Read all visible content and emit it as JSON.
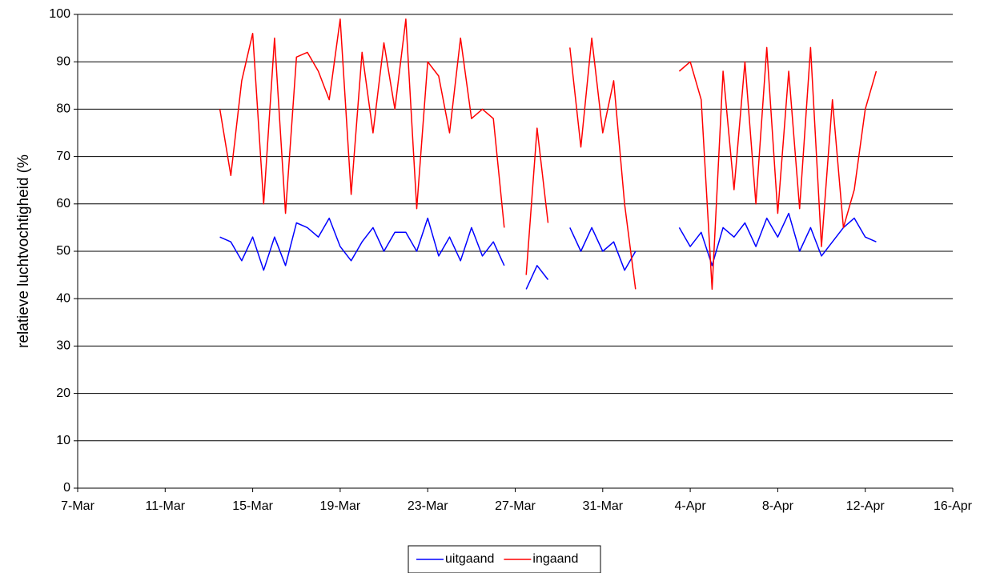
{
  "chart_data": {
    "type": "line",
    "y_label": "relatieve luchtvochtigheid (%",
    "x": [
      13.5,
      14,
      14.5,
      15,
      15.5,
      16,
      16.5,
      17,
      17.5,
      18,
      18.5,
      19,
      19.5,
      20,
      20.5,
      21,
      21.5,
      22,
      22.5,
      23,
      23.5,
      24,
      24.5,
      25,
      25.5,
      26,
      26.5,
      27,
      27.5,
      28,
      28.5,
      29,
      29.5,
      30,
      30.5,
      31,
      31.5,
      32,
      32.5,
      33,
      33.5,
      34,
      34.5,
      35,
      35.5,
      36,
      36.5,
      37,
      37.5,
      38,
      38.5,
      39,
      39.5,
      40,
      40.5,
      41,
      41.5,
      42,
      42.5,
      43,
      43.5
    ],
    "series": [
      {
        "name": "uitgaand",
        "color": "#0000ff",
        "values": [
          53,
          52,
          48,
          53,
          46,
          53,
          47,
          56,
          55,
          53,
          57,
          51,
          48,
          52,
          55,
          50,
          54,
          54,
          50,
          57,
          49,
          53,
          48,
          55,
          49,
          52,
          47,
          null,
          42,
          47,
          44,
          null,
          55,
          50,
          55,
          50,
          52,
          46,
          50,
          null,
          null,
          null,
          55,
          51,
          54,
          47,
          55,
          53,
          56,
          51,
          57,
          53,
          58,
          50,
          55,
          49,
          52,
          55,
          57,
          53,
          52
        ]
      },
      {
        "name": "ingaand",
        "color": "#ff0000",
        "values": [
          80,
          66,
          86,
          96,
          60,
          95,
          58,
          91,
          92,
          88,
          82,
          99,
          62,
          92,
          75,
          94,
          80,
          99,
          59,
          90,
          87,
          75,
          95,
          78,
          80,
          78,
          55,
          null,
          45,
          76,
          56,
          null,
          93,
          72,
          95,
          75,
          86,
          60,
          42,
          null,
          null,
          null,
          88,
          90,
          82,
          42,
          88,
          63,
          90,
          60,
          93,
          58,
          88,
          59,
          93,
          51,
          82,
          55,
          63,
          80,
          88
        ]
      }
    ],
    "xlim": [
      7,
      47
    ],
    "xticks": [
      {
        "value": 7,
        "label": "7-Mar"
      },
      {
        "value": 11,
        "label": "11-Mar"
      },
      {
        "value": 15,
        "label": "15-Mar"
      },
      {
        "value": 19,
        "label": "19-Mar"
      },
      {
        "value": 23,
        "label": "23-Mar"
      },
      {
        "value": 27,
        "label": "27-Mar"
      },
      {
        "value": 31,
        "label": "31-Mar"
      },
      {
        "value": 35,
        "label": "4-Apr"
      },
      {
        "value": 39,
        "label": "8-Apr"
      },
      {
        "value": 43,
        "label": "12-Apr"
      },
      {
        "value": 47,
        "label": "16-Apr"
      }
    ],
    "ylim": [
      0,
      100
    ],
    "yticks": [
      0,
      10,
      20,
      30,
      40,
      50,
      60,
      70,
      80,
      90,
      100
    ],
    "grid": true,
    "legend": "bottom"
  }
}
